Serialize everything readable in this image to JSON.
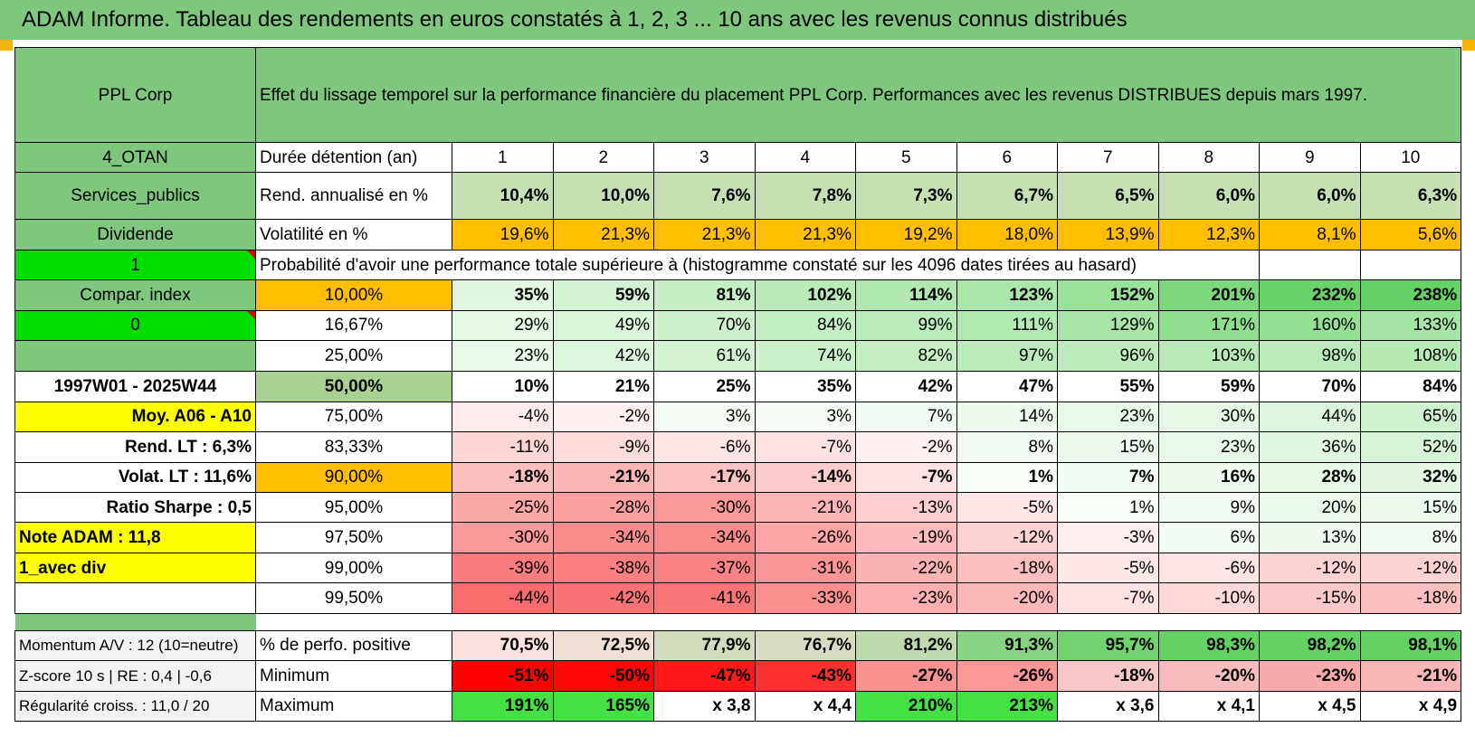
{
  "title": "ADAM Informe. Tableau des rendements en euros constatés à 1, 2, 3 ... 10 ans avec les revenus connus distribués",
  "header": {
    "fund_name": "PPL Corp",
    "description": "Effet du lissage temporel sur la performance financière du placement PPL Corp. Performances avec les revenus DISTRIBUES depuis mars 1997."
  },
  "left_panel": {
    "code": "4_OTAN",
    "sector": "Services_publics",
    "income_type": "Dividende",
    "input_1": "1",
    "compar_index": "Compar. index",
    "input_0": "0",
    "period": "1997W01 - 2025W44",
    "moy_label": "Moy. A06 - A10",
    "rend_lt": "Rend. LT :   6,3%",
    "volat_lt": "Volat. LT :   11,6%",
    "sharpe": "Ratio Sharpe :    0,5",
    "note_adam": "Note ADAM : 11,8",
    "avec_div": "1_avec div"
  },
  "row_labels": {
    "duration": "Durée détention (an)",
    "rend": "Rend. annualisé en %",
    "volat": "Volatilité en %",
    "probability": "Probabilité d'avoir une performance totale supérieure à (histogramme constaté sur les 4096 dates tirées au hasard)"
  },
  "years": [
    "1",
    "2",
    "3",
    "4",
    "5",
    "6",
    "7",
    "8",
    "9",
    "10"
  ],
  "rend_annualise": [
    "10,4%",
    "10,0%",
    "7,6%",
    "7,8%",
    "7,3%",
    "6,7%",
    "6,5%",
    "6,0%",
    "6,0%",
    "6,3%"
  ],
  "volatilite": [
    "19,6%",
    "21,3%",
    "21,3%",
    "21,3%",
    "19,2%",
    "18,0%",
    "13,9%",
    "12,3%",
    "8,1%",
    "5,6%"
  ],
  "percentile_rows": [
    {
      "level": "10,00%",
      "values": [
        "35%",
        "59%",
        "81%",
        "102%",
        "114%",
        "123%",
        "152%",
        "201%",
        "232%",
        "238%"
      ]
    },
    {
      "level": "16,67%",
      "values": [
        "29%",
        "49%",
        "70%",
        "84%",
        "99%",
        "111%",
        "129%",
        "171%",
        "160%",
        "133%"
      ]
    },
    {
      "level": "25,00%",
      "values": [
        "23%",
        "42%",
        "61%",
        "74%",
        "82%",
        "97%",
        "96%",
        "103%",
        "98%",
        "108%"
      ]
    },
    {
      "level": "50,00%",
      "values": [
        "10%",
        "21%",
        "25%",
        "35%",
        "42%",
        "47%",
        "55%",
        "59%",
        "70%",
        "84%"
      ]
    },
    {
      "level": "75,00%",
      "values": [
        "-4%",
        "-2%",
        "3%",
        "3%",
        "7%",
        "14%",
        "23%",
        "30%",
        "44%",
        "65%"
      ]
    },
    {
      "level": "83,33%",
      "values": [
        "-11%",
        "-9%",
        "-6%",
        "-7%",
        "-2%",
        "8%",
        "15%",
        "23%",
        "36%",
        "52%"
      ]
    },
    {
      "level": "90,00%",
      "values": [
        "-18%",
        "-21%",
        "-17%",
        "-14%",
        "-7%",
        "1%",
        "7%",
        "16%",
        "28%",
        "32%"
      ]
    },
    {
      "level": "95,00%",
      "values": [
        "-25%",
        "-28%",
        "-30%",
        "-21%",
        "-13%",
        "-5%",
        "1%",
        "9%",
        "20%",
        "15%"
      ]
    },
    {
      "level": "97,50%",
      "values": [
        "-30%",
        "-34%",
        "-34%",
        "-26%",
        "-19%",
        "-12%",
        "-3%",
        "6%",
        "13%",
        "8%"
      ]
    },
    {
      "level": "99,00%",
      "values": [
        "-39%",
        "-38%",
        "-37%",
        "-31%",
        "-22%",
        "-18%",
        "-5%",
        "-6%",
        "-12%",
        "-12%"
      ]
    },
    {
      "level": "99,50%",
      "values": [
        "-44%",
        "-42%",
        "-41%",
        "-33%",
        "-23%",
        "-20%",
        "-7%",
        "-10%",
        "-15%",
        "-18%"
      ]
    }
  ],
  "footer": {
    "momentum": "Momentum A/V : 12 (10=neutre)",
    "zscore": "Z-score 10 s | RE : 0,4 | -0,6",
    "regularite": "Régularité croiss. : 11,0 / 20",
    "pct_positive_label": "% de perfo. positive",
    "minimum_label": "Minimum",
    "maximum_label": "Maximum",
    "pct_positive": [
      "70,5%",
      "72,5%",
      "77,9%",
      "76,7%",
      "81,2%",
      "91,3%",
      "95,7%",
      "98,3%",
      "98,2%",
      "98,1%"
    ],
    "minimum": [
      "-51%",
      "-50%",
      "-47%",
      "-43%",
      "-27%",
      "-26%",
      "-18%",
      "-20%",
      "-23%",
      "-21%"
    ],
    "maximum": [
      "191%",
      "165%",
      "x 3,8",
      "x 4,4",
      "210%",
      "213%",
      "x 3,6",
      "x 4,1",
      "x 4,5",
      "x 4,9"
    ]
  },
  "colors": {
    "header_green": "#7ec87e",
    "bright_green": "#00dd00",
    "yellow": "#ffff00",
    "orange": "#ffbf00",
    "positive_scale_max": "#63d263",
    "negative_scale_max": "#f8696b",
    "red_text": "#e00000"
  }
}
